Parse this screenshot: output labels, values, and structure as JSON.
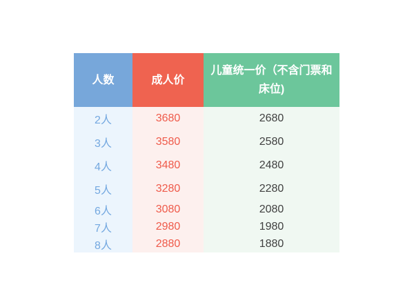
{
  "chart_data": {
    "type": "table",
    "title": "",
    "columns": [
      "人数",
      "成人价",
      "儿童统一价（不含门票和床位)"
    ],
    "rows": [
      [
        "2人",
        3680,
        2680
      ],
      [
        "3人",
        3580,
        2580
      ],
      [
        "4人",
        3480,
        2480
      ],
      [
        "5人",
        3280,
        2280
      ],
      [
        "6人",
        3080,
        2080
      ],
      [
        "7人",
        2980,
        1980
      ],
      [
        "8人",
        2880,
        1880
      ]
    ]
  },
  "table": {
    "headers": [
      {
        "id": "people",
        "label": "人数",
        "bg": "#77a7da",
        "tint": "#ecf5fd",
        "text_color": "#74a8e0"
      },
      {
        "id": "adult_price",
        "label": "成人价",
        "bg": "#ef6350",
        "tint": "#fdf0ee",
        "text_color": "#ef5a4a"
      },
      {
        "id": "child_price",
        "label": "儿童统一价（不含门票和床位)",
        "bg": "#6cc69b",
        "tint": "#f0f8f2",
        "text_color": "#404040"
      }
    ],
    "rows": [
      [
        "2人",
        "3680",
        "2680"
      ],
      [
        "3人",
        "3580",
        "2580"
      ],
      [
        "4人",
        "3480",
        "2480"
      ],
      [
        "5人",
        "3280",
        "2280"
      ],
      [
        "6人",
        "3080",
        "2080"
      ],
      [
        "7人",
        "2980",
        "1980"
      ],
      [
        "8人",
        "2880",
        "1880"
      ]
    ],
    "header_text_color": "#ffffff"
  }
}
